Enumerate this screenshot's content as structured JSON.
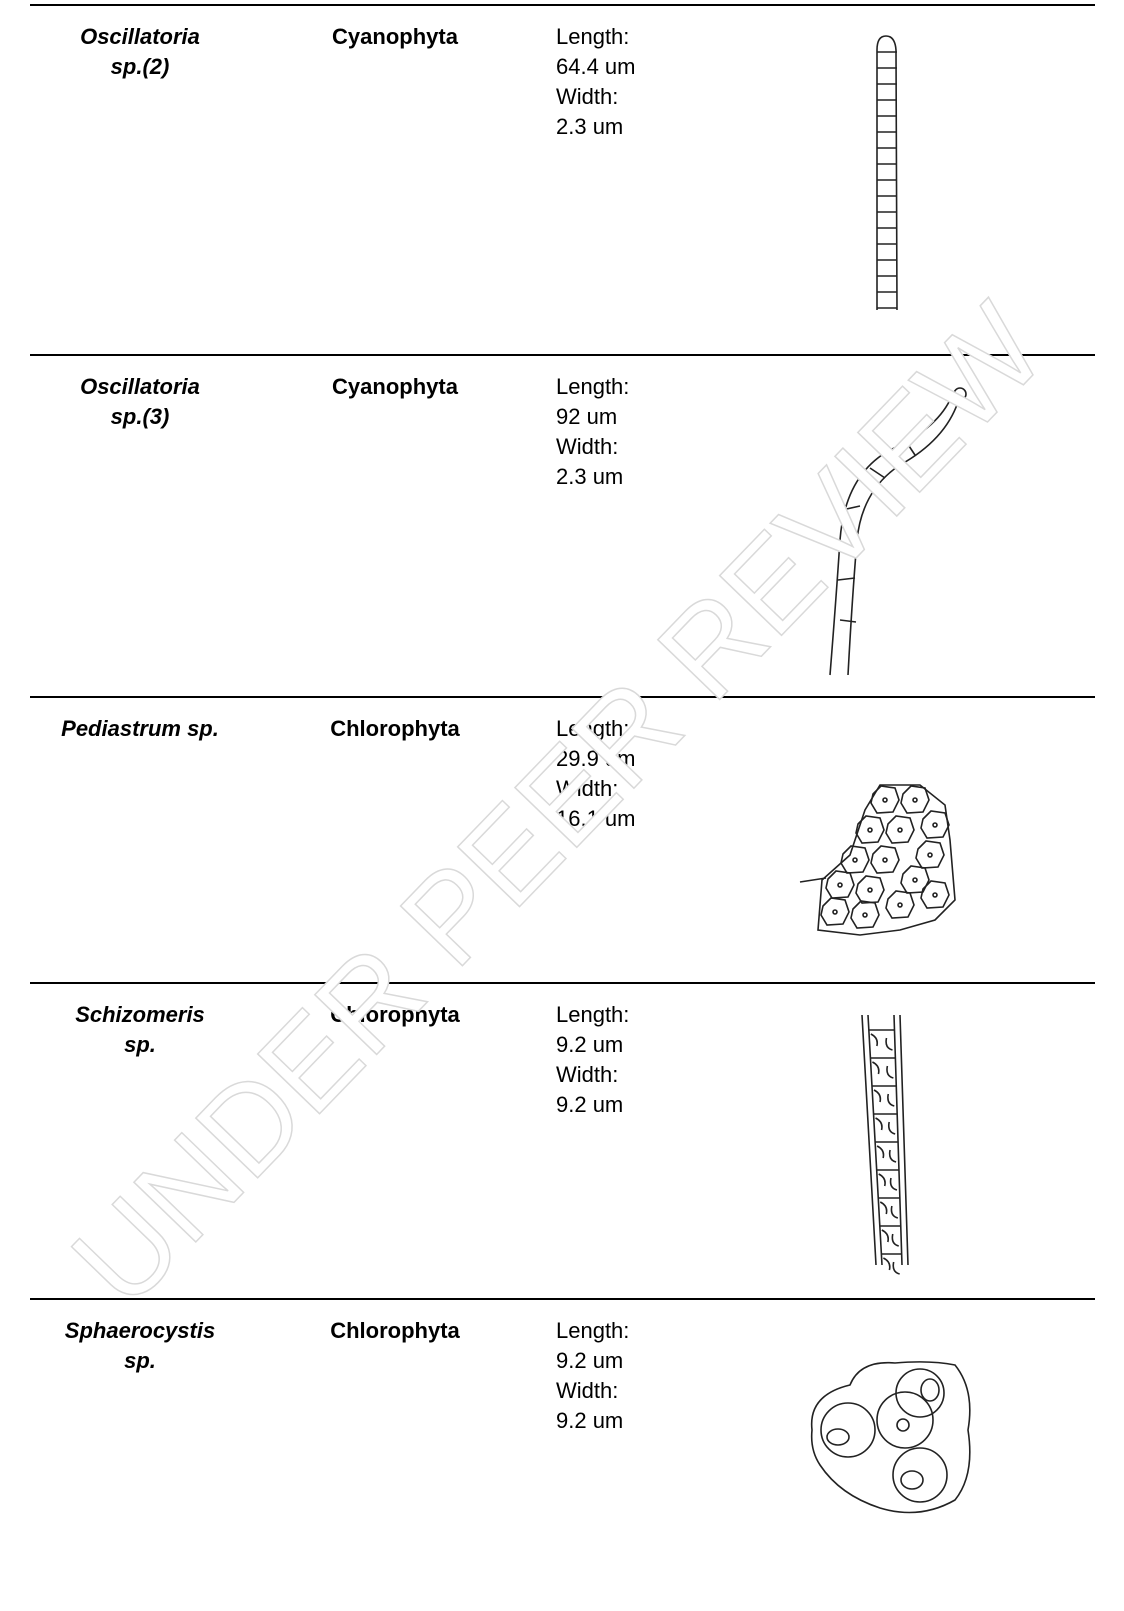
{
  "table": {
    "rows": [
      {
        "name": [
          "Oscillatoria",
          "sp.(2)"
        ],
        "phylum": "Cyanophyta",
        "size": [
          "Length:",
          "64.4 um",
          "Width:",
          "2.3 um"
        ]
      },
      {
        "name": [
          "Oscillatoria",
          "sp.(3)"
        ],
        "phylum": "Cyanophyta",
        "size": [
          "Length:",
          "92 um",
          "Width:",
          "2.3 um"
        ]
      },
      {
        "name": [
          "Pediastrum sp."
        ],
        "phylum": "Chlorophyta",
        "size": [
          "Length:",
          "29.9 um",
          "Width:",
          "16.1 um"
        ]
      },
      {
        "name": [
          "Schizomeris",
          "sp."
        ],
        "phylum": "Chlorophyta",
        "size": [
          "Length:",
          "9.2 um",
          "Width:",
          "9.2 um"
        ]
      },
      {
        "name": [
          "Sphaerocystis",
          "sp."
        ],
        "phylum": "Chlorophyta",
        "size": [
          "Length:",
          "9.2 um",
          "Width:",
          "9.2 um"
        ]
      }
    ]
  },
  "watermark": "UNDER PEER REVIEW"
}
